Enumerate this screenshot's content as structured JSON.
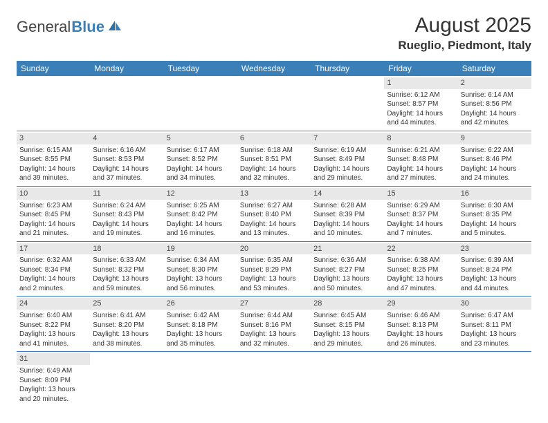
{
  "logo": {
    "general": "General",
    "blue": "Blue"
  },
  "title": "August 2025",
  "location": "Rueglio, Piedmont, Italy",
  "colors": {
    "header_bar": "#3b7fb8",
    "daynum_bg": "#e8e8e8",
    "row_border": "#3b7fb8",
    "text": "#333333",
    "logo_blue": "#3b7fb8"
  },
  "weekdays": [
    "Sunday",
    "Monday",
    "Tuesday",
    "Wednesday",
    "Thursday",
    "Friday",
    "Saturday"
  ],
  "weeks": [
    [
      null,
      null,
      null,
      null,
      null,
      {
        "n": "1",
        "sr": "Sunrise: 6:12 AM",
        "ss": "Sunset: 8:57 PM",
        "d1": "Daylight: 14 hours",
        "d2": "and 44 minutes."
      },
      {
        "n": "2",
        "sr": "Sunrise: 6:14 AM",
        "ss": "Sunset: 8:56 PM",
        "d1": "Daylight: 14 hours",
        "d2": "and 42 minutes."
      }
    ],
    [
      {
        "n": "3",
        "sr": "Sunrise: 6:15 AM",
        "ss": "Sunset: 8:55 PM",
        "d1": "Daylight: 14 hours",
        "d2": "and 39 minutes."
      },
      {
        "n": "4",
        "sr": "Sunrise: 6:16 AM",
        "ss": "Sunset: 8:53 PM",
        "d1": "Daylight: 14 hours",
        "d2": "and 37 minutes."
      },
      {
        "n": "5",
        "sr": "Sunrise: 6:17 AM",
        "ss": "Sunset: 8:52 PM",
        "d1": "Daylight: 14 hours",
        "d2": "and 34 minutes."
      },
      {
        "n": "6",
        "sr": "Sunrise: 6:18 AM",
        "ss": "Sunset: 8:51 PM",
        "d1": "Daylight: 14 hours",
        "d2": "and 32 minutes."
      },
      {
        "n": "7",
        "sr": "Sunrise: 6:19 AM",
        "ss": "Sunset: 8:49 PM",
        "d1": "Daylight: 14 hours",
        "d2": "and 29 minutes."
      },
      {
        "n": "8",
        "sr": "Sunrise: 6:21 AM",
        "ss": "Sunset: 8:48 PM",
        "d1": "Daylight: 14 hours",
        "d2": "and 27 minutes."
      },
      {
        "n": "9",
        "sr": "Sunrise: 6:22 AM",
        "ss": "Sunset: 8:46 PM",
        "d1": "Daylight: 14 hours",
        "d2": "and 24 minutes."
      }
    ],
    [
      {
        "n": "10",
        "sr": "Sunrise: 6:23 AM",
        "ss": "Sunset: 8:45 PM",
        "d1": "Daylight: 14 hours",
        "d2": "and 21 minutes."
      },
      {
        "n": "11",
        "sr": "Sunrise: 6:24 AM",
        "ss": "Sunset: 8:43 PM",
        "d1": "Daylight: 14 hours",
        "d2": "and 19 minutes."
      },
      {
        "n": "12",
        "sr": "Sunrise: 6:25 AM",
        "ss": "Sunset: 8:42 PM",
        "d1": "Daylight: 14 hours",
        "d2": "and 16 minutes."
      },
      {
        "n": "13",
        "sr": "Sunrise: 6:27 AM",
        "ss": "Sunset: 8:40 PM",
        "d1": "Daylight: 14 hours",
        "d2": "and 13 minutes."
      },
      {
        "n": "14",
        "sr": "Sunrise: 6:28 AM",
        "ss": "Sunset: 8:39 PM",
        "d1": "Daylight: 14 hours",
        "d2": "and 10 minutes."
      },
      {
        "n": "15",
        "sr": "Sunrise: 6:29 AM",
        "ss": "Sunset: 8:37 PM",
        "d1": "Daylight: 14 hours",
        "d2": "and 7 minutes."
      },
      {
        "n": "16",
        "sr": "Sunrise: 6:30 AM",
        "ss": "Sunset: 8:35 PM",
        "d1": "Daylight: 14 hours",
        "d2": "and 5 minutes."
      }
    ],
    [
      {
        "n": "17",
        "sr": "Sunrise: 6:32 AM",
        "ss": "Sunset: 8:34 PM",
        "d1": "Daylight: 14 hours",
        "d2": "and 2 minutes."
      },
      {
        "n": "18",
        "sr": "Sunrise: 6:33 AM",
        "ss": "Sunset: 8:32 PM",
        "d1": "Daylight: 13 hours",
        "d2": "and 59 minutes."
      },
      {
        "n": "19",
        "sr": "Sunrise: 6:34 AM",
        "ss": "Sunset: 8:30 PM",
        "d1": "Daylight: 13 hours",
        "d2": "and 56 minutes."
      },
      {
        "n": "20",
        "sr": "Sunrise: 6:35 AM",
        "ss": "Sunset: 8:29 PM",
        "d1": "Daylight: 13 hours",
        "d2": "and 53 minutes."
      },
      {
        "n": "21",
        "sr": "Sunrise: 6:36 AM",
        "ss": "Sunset: 8:27 PM",
        "d1": "Daylight: 13 hours",
        "d2": "and 50 minutes."
      },
      {
        "n": "22",
        "sr": "Sunrise: 6:38 AM",
        "ss": "Sunset: 8:25 PM",
        "d1": "Daylight: 13 hours",
        "d2": "and 47 minutes."
      },
      {
        "n": "23",
        "sr": "Sunrise: 6:39 AM",
        "ss": "Sunset: 8:24 PM",
        "d1": "Daylight: 13 hours",
        "d2": "and 44 minutes."
      }
    ],
    [
      {
        "n": "24",
        "sr": "Sunrise: 6:40 AM",
        "ss": "Sunset: 8:22 PM",
        "d1": "Daylight: 13 hours",
        "d2": "and 41 minutes."
      },
      {
        "n": "25",
        "sr": "Sunrise: 6:41 AM",
        "ss": "Sunset: 8:20 PM",
        "d1": "Daylight: 13 hours",
        "d2": "and 38 minutes."
      },
      {
        "n": "26",
        "sr": "Sunrise: 6:42 AM",
        "ss": "Sunset: 8:18 PM",
        "d1": "Daylight: 13 hours",
        "d2": "and 35 minutes."
      },
      {
        "n": "27",
        "sr": "Sunrise: 6:44 AM",
        "ss": "Sunset: 8:16 PM",
        "d1": "Daylight: 13 hours",
        "d2": "and 32 minutes."
      },
      {
        "n": "28",
        "sr": "Sunrise: 6:45 AM",
        "ss": "Sunset: 8:15 PM",
        "d1": "Daylight: 13 hours",
        "d2": "and 29 minutes."
      },
      {
        "n": "29",
        "sr": "Sunrise: 6:46 AM",
        "ss": "Sunset: 8:13 PM",
        "d1": "Daylight: 13 hours",
        "d2": "and 26 minutes."
      },
      {
        "n": "30",
        "sr": "Sunrise: 6:47 AM",
        "ss": "Sunset: 8:11 PM",
        "d1": "Daylight: 13 hours",
        "d2": "and 23 minutes."
      }
    ],
    [
      {
        "n": "31",
        "sr": "Sunrise: 6:49 AM",
        "ss": "Sunset: 8:09 PM",
        "d1": "Daylight: 13 hours",
        "d2": "and 20 minutes."
      },
      null,
      null,
      null,
      null,
      null,
      null
    ]
  ]
}
